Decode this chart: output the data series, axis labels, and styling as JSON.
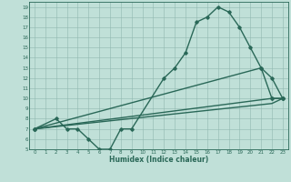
{
  "title": "",
  "xlabel": "Humidex (Indice chaleur)",
  "bg_color": "#c0e0d8",
  "grid_color": "#90b8b0",
  "line_color": "#2a6858",
  "xlim": [
    -0.5,
    23.5
  ],
  "ylim": [
    5,
    19.5
  ],
  "xticks": [
    0,
    1,
    2,
    3,
    4,
    5,
    6,
    7,
    8,
    9,
    10,
    11,
    12,
    13,
    14,
    15,
    16,
    17,
    18,
    19,
    20,
    21,
    22,
    23
  ],
  "yticks": [
    5,
    6,
    7,
    8,
    9,
    10,
    11,
    12,
    13,
    14,
    15,
    16,
    17,
    18,
    19
  ],
  "series": [
    {
      "x": [
        0,
        2,
        3,
        4,
        5,
        6,
        7,
        8,
        9,
        12,
        13,
        14,
        15,
        16,
        17,
        18,
        19,
        20,
        21,
        22,
        23
      ],
      "y": [
        7,
        8,
        7,
        7,
        6,
        5,
        5,
        7,
        7,
        12,
        13,
        14.5,
        17.5,
        18,
        19,
        18.5,
        17,
        15,
        13,
        10,
        10
      ],
      "marker": true,
      "linewidth": 1.0
    },
    {
      "x": [
        0,
        21,
        22,
        23
      ],
      "y": [
        7,
        13,
        12,
        10
      ],
      "marker": true,
      "linewidth": 1.0
    },
    {
      "x": [
        0,
        22,
        23
      ],
      "y": [
        7,
        10,
        10
      ],
      "marker": true,
      "linewidth": 1.0
    },
    {
      "x": [
        0,
        22,
        23
      ],
      "y": [
        7,
        9.5,
        10
      ],
      "marker": false,
      "linewidth": 1.0
    }
  ]
}
